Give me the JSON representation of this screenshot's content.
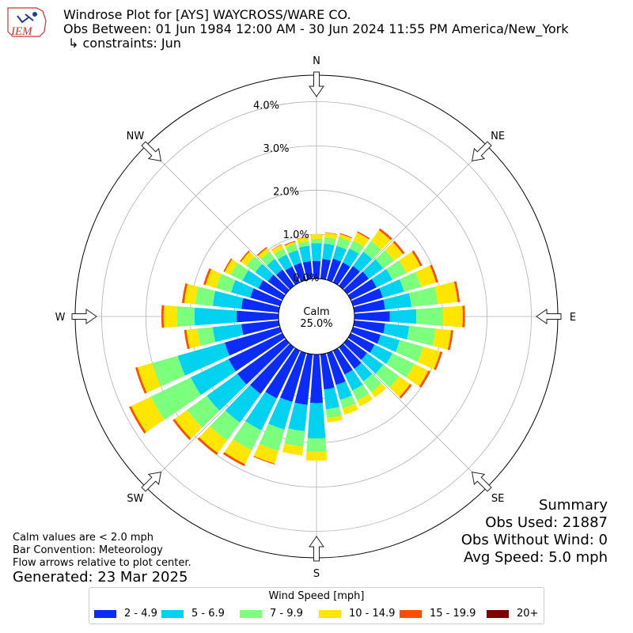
{
  "header": {
    "logo_text": "IEM",
    "title": "Windrose Plot for [AYS] WAYCROSS/WARE CO.",
    "subtitle": "Obs Between: 01 Jun 1984 12:00 AM - 30 Jun 2024 11:55 PM America/New_York",
    "constraints": "↳ constraints: Jun"
  },
  "summary": {
    "heading": "Summary",
    "obs_used": "Obs Used: 21887",
    "obs_without_wind": "Obs Without Wind: 0",
    "avg_speed": "Avg Speed: 5.0 mph"
  },
  "notes": {
    "calm": "Calm values are < 2.0 mph",
    "convention": "Bar Convention: Meteorology",
    "flow": "Flow arrows relative to plot center.",
    "generated": "Generated: 23 Mar 2025"
  },
  "chart_data": {
    "type": "windrose",
    "center_label": "Calm",
    "calm_percent": "25.0%",
    "radial_ticks": [
      0,
      1,
      2,
      3,
      4
    ],
    "radial_tick_labels": [
      "0.0%",
      "1.0%",
      "2.0%",
      "3.0%",
      "4.0%"
    ],
    "rmax": 4.6,
    "compass_labels": [
      "N",
      "NE",
      "E",
      "SE",
      "S",
      "SW",
      "W",
      "NW"
    ],
    "legend_title": "Wind Speed [mph]",
    "bins": [
      {
        "label": "2 - 4.9",
        "color": "#0b2cf7"
      },
      {
        "label": "5 - 6.9",
        "color": "#00d2f0"
      },
      {
        "label": "7 - 9.9",
        "color": "#7cff7c"
      },
      {
        "label": "10 - 14.9",
        "color": "#ffe600"
      },
      {
        "label": "15 - 19.9",
        "color": "#ff4d00"
      },
      {
        "label": "20+",
        "color": "#7f0000"
      }
    ],
    "directions": [
      0,
      10,
      20,
      30,
      40,
      50,
      60,
      70,
      80,
      90,
      100,
      110,
      120,
      130,
      140,
      150,
      160,
      170,
      180,
      190,
      200,
      210,
      220,
      230,
      240,
      250,
      260,
      270,
      280,
      290,
      300,
      310,
      320,
      330,
      340,
      350
    ],
    "cumulative": [
      [
        0.4,
        0.8,
        0.9,
        1.0,
        1.0,
        1.0
      ],
      [
        0.45,
        0.8,
        0.95,
        1.05,
        1.06,
        1.06
      ],
      [
        0.5,
        0.8,
        1.0,
        1.08,
        1.1,
        1.1
      ],
      [
        0.5,
        0.85,
        1.05,
        1.25,
        1.28,
        1.28
      ],
      [
        0.55,
        0.95,
        1.25,
        1.55,
        1.6,
        1.6
      ],
      [
        0.6,
        1.0,
        1.3,
        1.55,
        1.6,
        1.6
      ],
      [
        0.65,
        1.05,
        1.4,
        1.75,
        1.8,
        1.8
      ],
      [
        0.7,
        1.2,
        1.6,
        1.95,
        2.0,
        2.0
      ],
      [
        0.7,
        1.3,
        1.9,
        2.35,
        2.4,
        2.4
      ],
      [
        0.8,
        1.4,
        2.0,
        2.45,
        2.5,
        2.5
      ],
      [
        0.7,
        1.25,
        1.85,
        2.2,
        2.25,
        2.25
      ],
      [
        0.65,
        1.1,
        1.65,
        2.05,
        2.1,
        2.1
      ],
      [
        0.6,
        1.05,
        1.6,
        1.95,
        2.0,
        2.0
      ],
      [
        0.55,
        1.0,
        1.45,
        1.75,
        1.8,
        1.8
      ],
      [
        0.6,
        0.95,
        1.25,
        1.4,
        1.4,
        1.4
      ],
      [
        0.6,
        1.0,
        1.25,
        1.4,
        1.4,
        1.4
      ],
      [
        0.75,
        1.1,
        1.3,
        1.45,
        1.45,
        1.45
      ],
      [
        0.8,
        1.25,
        1.45,
        1.55,
        1.55,
        1.55
      ],
      [
        1.1,
        1.9,
        2.2,
        2.4,
        2.4,
        2.4
      ],
      [
        1.15,
        1.75,
        2.1,
        2.3,
        2.3,
        2.3
      ],
      [
        1.15,
        1.8,
        2.3,
        2.6,
        2.62,
        2.62
      ],
      [
        1.2,
        2.0,
        2.5,
        2.85,
        2.9,
        2.9
      ],
      [
        1.3,
        2.1,
        2.6,
        2.95,
        3.0,
        3.0
      ],
      [
        1.35,
        2.2,
        2.75,
        3.1,
        3.15,
        3.15
      ],
      [
        1.35,
        2.3,
        3.3,
        3.8,
        3.85,
        3.85
      ],
      [
        1.3,
        2.4,
        3.0,
        3.35,
        3.4,
        3.4
      ],
      [
        0.85,
        1.5,
        1.85,
        2.1,
        2.15,
        2.15
      ],
      [
        0.95,
        1.9,
        2.3,
        2.6,
        2.65,
        2.65
      ],
      [
        0.85,
        1.5,
        1.9,
        2.15,
        2.2,
        2.2
      ],
      [
        0.7,
        1.15,
        1.5,
        1.75,
        1.8,
        1.8
      ],
      [
        0.6,
        1.0,
        1.3,
        1.45,
        1.48,
        1.48
      ],
      [
        0.5,
        0.85,
        1.1,
        1.25,
        1.28,
        1.28
      ],
      [
        0.45,
        0.75,
        0.95,
        1.05,
        1.08,
        1.08
      ],
      [
        0.4,
        0.7,
        0.85,
        0.95,
        0.96,
        0.96
      ],
      [
        0.4,
        0.7,
        0.85,
        0.9,
        0.92,
        0.92
      ],
      [
        0.4,
        0.75,
        0.85,
        0.95,
        0.96,
        0.96
      ]
    ]
  }
}
